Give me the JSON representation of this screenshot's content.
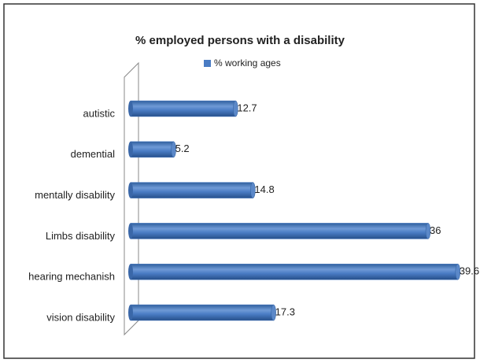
{
  "chart_data": {
    "type": "bar",
    "orientation": "horizontal",
    "title": "% employed persons with a disability",
    "categories": [
      "autistic",
      "demential",
      "mentally disability",
      "Limbs disability",
      "hearing mechanish",
      "vision disability"
    ],
    "series": [
      {
        "name": "% working ages",
        "color": "#4a7cc4",
        "values": [
          12.7,
          5.2,
          14.8,
          36,
          39.6,
          17.3
        ]
      }
    ]
  }
}
